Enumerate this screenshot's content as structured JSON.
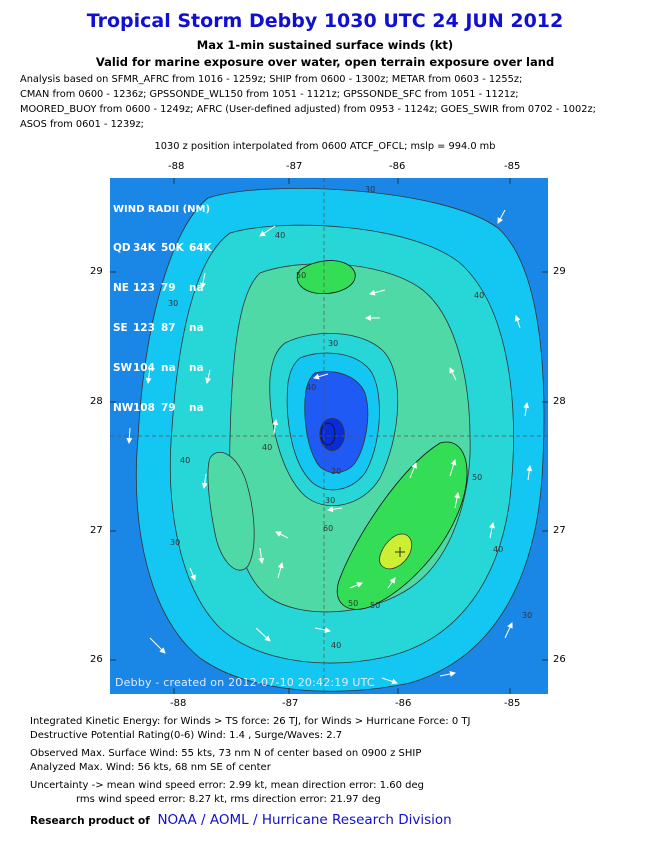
{
  "header": {
    "title": "Tropical Storm Debby 1030 UTC 24 JUN 2012",
    "subtitle1": "Max 1-min sustained surface winds (kt)",
    "subtitle2": "Valid for marine exposure over water, open terrain exposure over land"
  },
  "analysis": {
    "lines": [
      "Analysis based on SFMR_AFRC from 1016 - 1259z; SHIP from 0600 - 1300z; METAR from 0603 - 1255z;",
      "CMAN from 0600 - 1236z; GPSSONDE_WL150 from 1051 - 1121z; GPSSONDE_SFC from 1051 - 1121z;",
      "MOORED_BUOY from 0600 - 1249z; AFRC (User-defined adjusted) from 0953 - 1124z; GOES_SWIR from 0702 - 1002z;",
      "ASOS from 0601 - 1239z;"
    ],
    "interp": "1030 z position interpolated from 0600 ATCF_OFCL; mslp = 994.0 mb"
  },
  "map": {
    "lon_ticks": [
      "-88",
      "-87",
      "-86",
      "-85"
    ],
    "lat_ticks": [
      "29",
      "28",
      "27",
      "26"
    ],
    "lon_range": [
      -88.5,
      -84.7
    ],
    "lat_range": [
      25.7,
      28.95
    ],
    "center": {
      "lon": -86.6,
      "lat": 27.73
    },
    "contour_labels": [
      "30",
      "40",
      "50",
      "30",
      "40",
      "50",
      "40",
      "30",
      "20",
      "30",
      "40",
      "50",
      "50",
      "40",
      "30",
      "40",
      "30",
      "60",
      "40"
    ],
    "colors": {
      "background": "#1a86e6",
      "level_30": "#13c7f2",
      "level_40": "#27d6d6",
      "level_50": "#4fd9a6",
      "level_55": "#33dd55",
      "max": "#ccee33",
      "core": "#1f5af5",
      "eye": "#0a2bd8"
    },
    "wind_radii": {
      "title": "WIND RADII (NM)",
      "header": [
        "QD",
        "34K",
        "50K",
        "64K"
      ],
      "rows": [
        [
          "NE",
          "123",
          "79",
          "na"
        ],
        [
          "SE",
          "123",
          "87",
          "na"
        ],
        [
          "SW",
          "104",
          "na",
          "na"
        ],
        [
          "NW",
          "108",
          "79",
          "na"
        ]
      ]
    },
    "credit": "Debby - created on 2012-07-10 20:42:19 UTC"
  },
  "footer": {
    "ike": "Integrated Kinetic Energy: for Winds > TS force: 26 TJ, for Winds > Hurricane Force: 0 TJ",
    "dpr": "Destructive Potential Rating(0-6)  Wind: 1.4 , Surge/Waves: 2.7",
    "observed": "Observed Max. Surface Wind: 55 kts, 73 nm N of center based on 0900 z SHIP",
    "analyzed": "Analyzed Max. Wind: 56 kts, 68 nm  SE of center",
    "uncertainty1": "Uncertainty -> mean wind speed error: 2.99 kt, mean direction error: 1.60 deg",
    "uncertainty2": "rms wind speed error: 8.27 kt, rms direction error: 21.97 deg",
    "research_label": "Research product of",
    "research_org": "NOAA  /  AOML  /  Hurricane Research Division"
  }
}
